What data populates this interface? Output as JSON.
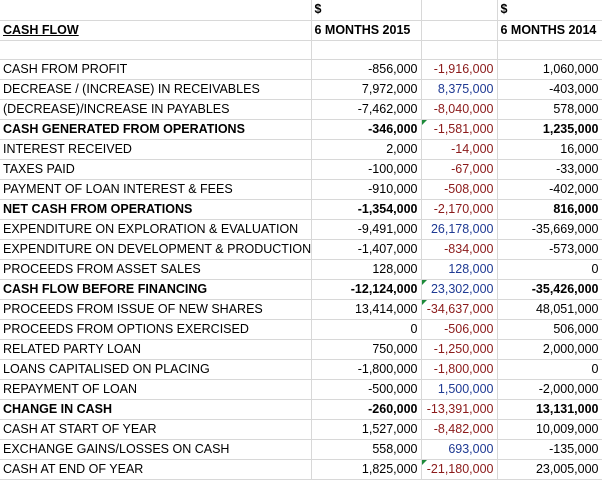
{
  "header": {
    "currency_2015": "$",
    "currency_2014": "$",
    "title": "CASH FLOW",
    "col_2015": "6 MONTHS 2015",
    "col_2014": "6 MONTHS 2014"
  },
  "colors": {
    "negative_change": "#8b1a1a",
    "positive_change": "#1f3a93",
    "error_flag": "#1e8a3a"
  },
  "rows": [
    {
      "label": "CASH FROM PROFIT",
      "v2015": "-856,000",
      "diff": "-1,916,000",
      "v2014": "1,060,000"
    },
    {
      "label": "DECREASE / (INCREASE) IN RECEIVABLES",
      "v2015": "7,972,000",
      "diff": "8,375,000",
      "v2014": "-403,000"
    },
    {
      "label": "(DECREASE)/INCREASE  IN PAYABLES",
      "v2015": "-7,462,000",
      "diff": "-8,040,000",
      "v2014": "578,000"
    },
    {
      "label": "CASH GENERATED FROM OPERATIONS",
      "v2015": "-346,000",
      "diff": "-1,581,000",
      "v2014": "1,235,000"
    },
    {
      "label": "INTEREST RECEIVED",
      "v2015": "2,000",
      "diff": "-14,000",
      "v2014": "16,000"
    },
    {
      "label": "TAXES PAID",
      "v2015": "-100,000",
      "diff": "-67,000",
      "v2014": "-33,000"
    },
    {
      "label": "PAYMENT OF LOAN INTEREST & FEES",
      "v2015": "-910,000",
      "diff": "-508,000",
      "v2014": "-402,000"
    },
    {
      "label": "NET CASH FROM OPERATIONS",
      "v2015": "-1,354,000",
      "diff": "-2,170,000",
      "v2014": "816,000"
    },
    {
      "label": "EXPENDITURE ON EXPLORATION & EVALUATION",
      "v2015": "-9,491,000",
      "diff": "26,178,000",
      "v2014": "-35,669,000"
    },
    {
      "label": "EXPENDITURE ON DEVELOPMENT & PRODUCTION",
      "v2015": "-1,407,000",
      "diff": "-834,000",
      "v2014": "-573,000"
    },
    {
      "label": "PROCEEDS FROM ASSET SALES",
      "v2015": "128,000",
      "diff": "128,000",
      "v2014": "0"
    },
    {
      "label": "CASH FLOW BEFORE FINANCING",
      "v2015": "-12,124,000",
      "diff": "23,302,000",
      "v2014": "-35,426,000"
    },
    {
      "label": "PROCEEDS FROM ISSUE OF NEW SHARES",
      "v2015": "13,414,000",
      "diff": "-34,637,000",
      "v2014": "48,051,000"
    },
    {
      "label": "PROCEEDS FROM OPTIONS EXERCISED",
      "v2015": "0",
      "diff": "-506,000",
      "v2014": "506,000"
    },
    {
      "label": "RELATED PARTY LOAN",
      "v2015": "750,000",
      "diff": "-1,250,000",
      "v2014": "2,000,000"
    },
    {
      "label": "LOANS CAPITALISED ON PLACING",
      "v2015": "-1,800,000",
      "diff": "-1,800,000",
      "v2014": "0"
    },
    {
      "label": "REPAYMENT OF LOAN",
      "v2015": "-500,000",
      "diff": "1,500,000",
      "v2014": "-2,000,000"
    },
    {
      "label": "CHANGE IN CASH",
      "v2015": "-260,000",
      "diff": "-13,391,000",
      "v2014": "13,131,000"
    },
    {
      "label": "CASH AT START OF YEAR",
      "v2015": "1,527,000",
      "diff": "-8,482,000",
      "v2014": "10,009,000"
    },
    {
      "label": "EXCHANGE GAINS/LOSSES ON CASH",
      "v2015": "558,000",
      "diff": "693,000",
      "v2014": "-135,000"
    },
    {
      "label": "CASH AT END OF YEAR",
      "v2015": "1,825,000",
      "diff": "-21,180,000",
      "v2014": "23,005,000"
    }
  ]
}
